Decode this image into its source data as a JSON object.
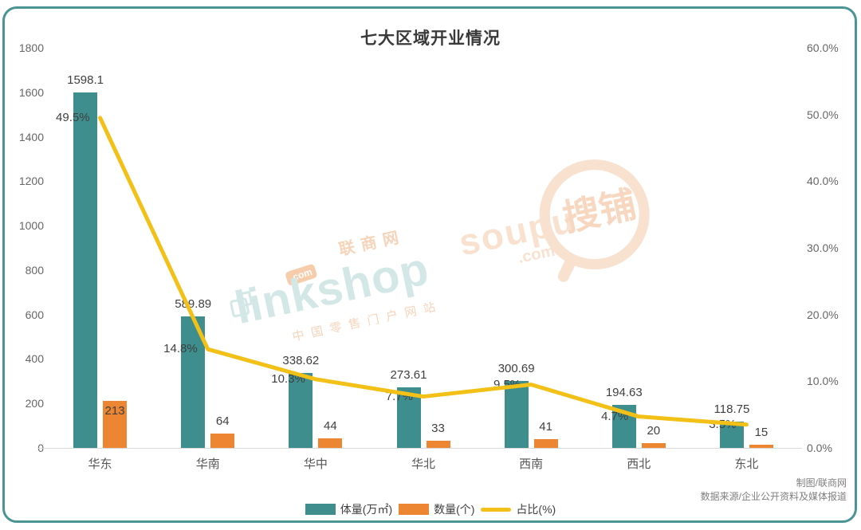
{
  "title": "七大区域开业情况",
  "chart_data": {
    "type": "bar+line combo",
    "categories": [
      "华东",
      "华南",
      "华中",
      "华北",
      "西南",
      "西北",
      "东北"
    ],
    "series": [
      {
        "name": "体量(万㎡)",
        "type": "bar",
        "axis": "left",
        "color": "#3e8e8e",
        "values": [
          1598.1,
          589.89,
          338.62,
          273.61,
          300.69,
          194.63,
          118.75
        ]
      },
      {
        "name": "数量(个)",
        "type": "bar",
        "axis": "left",
        "color": "#ed8633",
        "values": [
          213,
          64,
          44,
          33,
          41,
          20,
          15
        ]
      },
      {
        "name": "占比(%)",
        "type": "line",
        "axis": "right",
        "color": "#f2c016",
        "values": [
          49.5,
          14.8,
          10.3,
          7.7,
          9.5,
          4.7,
          3.5
        ]
      }
    ],
    "percent_labels": [
      "49.5%",
      "14.8%",
      "10.3%",
      "7.7%",
      "9.5%",
      "4.7%",
      "3.5%"
    ],
    "left_axis": {
      "min": 0,
      "max": 1800,
      "step": 200,
      "ticks": [
        "1800",
        "1600",
        "1400",
        "1200",
        "1000",
        "800",
        "600",
        "400",
        "200",
        "0"
      ]
    },
    "right_axis": {
      "min": 0,
      "max": 60,
      "step": 10,
      "ticks": [
        "60.0%",
        "50.0%",
        "40.0%",
        "30.0%",
        "20.0%",
        "10.0%",
        "0.0%"
      ]
    },
    "grid": false,
    "legend_position": "bottom"
  },
  "legend": {
    "volume_label": "体量(万㎡)",
    "count_label": "数量(个)",
    "ratio_label": "占比(%)"
  },
  "credits": {
    "line1": "制图/联商网",
    "line2": "数据来源/企业公开资料及媒体报道"
  },
  "watermarks": {
    "linkshop": {
      "brand": "linkshop",
      "cjk_name": "联商网",
      "com": ".com",
      "slogan": "中国零售门户网站"
    },
    "soupu": {
      "brand": "soupu",
      "com": ".com",
      "cjk_name": "搜铺"
    }
  },
  "colors": {
    "volume_bar": "#3e8e8e",
    "count_bar": "#ed8633",
    "ratio_line": "#f2c016",
    "frame_border": "#4a9494",
    "axis_text": "#666666",
    "label_text": "#3f3f3f"
  }
}
